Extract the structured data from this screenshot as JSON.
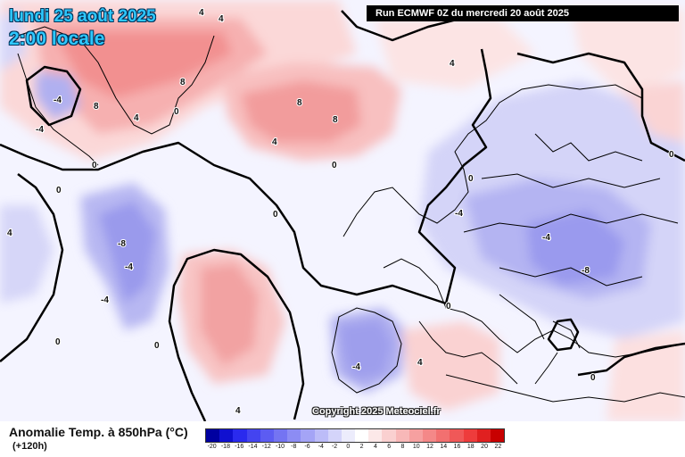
{
  "header": {
    "date": "lundi 25 août 2025",
    "time": "2:00 locale",
    "run": "Run ECMWF 0Z du mercredi 20 août 2025"
  },
  "copyright": "Copyright 2025 Meteociel.fr",
  "footer": {
    "variable": "Anomalie Temp. à 850hPa (°C)",
    "lead_time": "(+120h)"
  },
  "legend": {
    "ticks": [
      "-20",
      "-18",
      "-16",
      "-14",
      "-12",
      "-10",
      "-8",
      "-6",
      "-4",
      "-2",
      "0",
      "2",
      "4",
      "6",
      "8",
      "10",
      "12",
      "14",
      "16",
      "18",
      "20",
      "22"
    ],
    "colors": [
      "#0000a0",
      "#1010d0",
      "#2a2aee",
      "#4444f0",
      "#5c5cf2",
      "#7474f2",
      "#8c8cf4",
      "#a4a4f6",
      "#bcbcf8",
      "#d4d4fa",
      "#ececfc",
      "#ffffff",
      "#fce8e8",
      "#fad0d0",
      "#f8b8b8",
      "#f6a0a0",
      "#f48888",
      "#f27070",
      "#f05858",
      "#ee3c3c",
      "#e02020",
      "#c80000"
    ]
  },
  "contour_labels": [
    "4",
    "4",
    "4",
    "8",
    "8",
    "8",
    "8",
    "4",
    "0",
    "0",
    "0",
    "4",
    "-4",
    "-4",
    "-8",
    "-4",
    "0",
    "0",
    "-4",
    "0",
    "-8",
    "0",
    "4",
    "0",
    "-4",
    "-4",
    "4",
    "-4",
    "4",
    "0",
    "0",
    "0"
  ],
  "colors": {
    "title": "#2ec8ff",
    "warm": "#f28c8c",
    "cold": "#9898ee",
    "coast": "#000000"
  }
}
